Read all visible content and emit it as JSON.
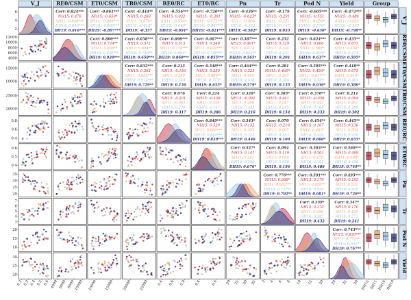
{
  "chart_data": {
    "type": "pairplot",
    "variables": [
      "VJ",
      "REo/CSM",
      "ETo/CSM",
      "TRo/CSM",
      "REo/RC",
      "ETo/RC",
      "Pn",
      "Tr",
      "Pod N",
      "Yield"
    ],
    "header_labels": [
      "V_J",
      "RE0/CSM",
      "ET0/CSM",
      "TR0/CSM",
      "RE0/RC",
      "ET0/RC",
      "Pn",
      "Tr",
      "Pod N",
      "Yield",
      "Group"
    ],
    "groups": [
      "NH15",
      "SH11",
      "HH16",
      "DH19"
    ],
    "group_colors": [
      "#c0243a",
      "#f0a060",
      "#8fc3e6",
      "#2b2b7a"
    ],
    "x_ticks": [
      [
        "0.2",
        "0.3",
        "0.4",
        "0.5",
        "0.6"
      ],
      [
        "4000",
        "6000",
        "8000",
        "10000"
      ],
      [
        "10000",
        "15000"
      ],
      [
        "20000",
        "25000"
      ],
      [
        "0.4",
        "0.6",
        "0.8"
      ],
      [
        "0.4",
        "0.6"
      ],
      [
        "20",
        "25",
        "30",
        "35"
      ],
      [
        "2",
        "4",
        "6",
        "8"
      ],
      [
        "10",
        "15",
        "20"
      ],
      [
        "20",
        "25",
        "30"
      ],
      [
        "NH15",
        "SH11",
        "HH16",
        "DH19"
      ]
    ],
    "y_ticks": [
      [
        "2",
        "4",
        "6"
      ],
      [
        "4000",
        "6000",
        "8000",
        "10000",
        "12000"
      ],
      [
        "10000",
        "15000"
      ],
      [
        "20000",
        "25000"
      ],
      [
        "0.4",
        "0.6",
        "0.8"
      ],
      [
        "0.4",
        "0.5",
        "0.6"
      ],
      [
        "20",
        "25",
        "30",
        "35"
      ],
      [
        "3",
        "4",
        "5",
        "6",
        "7"
      ],
      [
        "10",
        "15",
        "20"
      ],
      [
        "20",
        "25",
        "30"
      ]
    ],
    "correlations": [
      {
        "row": 0,
        "col": 1,
        "corr": "Corr: 0.824***",
        "g": [
          "NH15: 0.476",
          "SH11: 0.846***",
          "HH16: 0.845***",
          "DH19: 0.816***"
        ]
      },
      {
        "row": 0,
        "col": 2,
        "corr": "Corr: -0.861***",
        "g": [
          "NH15: -0.650*",
          "SH11: -0.846***",
          "HH16: -0.860***",
          "DH19: -0.897***"
        ]
      },
      {
        "row": 0,
        "col": 3,
        "corr": "Corr: -0.444**",
        "g": [
          "NH15: 0.260",
          "SH11: -0.576*",
          "HH16: -0.618*",
          "DH19: -0.357"
        ]
      },
      {
        "row": 0,
        "col": 4,
        "corr": "Corr: -0.556***",
        "g": [
          "NH15: 0.032",
          "SH11: -0.576*",
          "HH16: -0.669*",
          "DH19: -0.691*"
        ]
      },
      {
        "row": 0,
        "col": 5,
        "corr": "Corr: -0.720***",
        "g": [
          "NH15: -0.391",
          "SH11: -0.875***",
          "HH16: -0.847***",
          "DH19: -0.821***"
        ]
      },
      {
        "row": 0,
        "col": 6,
        "corr": "Corr: -0.436**",
        "g": [
          "NH15: -0.623*",
          "SH11: -0.608",
          "HH16: -0.523",
          "DH19: -0.582*"
        ]
      },
      {
        "row": 0,
        "col": 7,
        "corr": "Corr: -0.179",
        "g": [
          "NH15: -0.291",
          "SH11: -0.321",
          "HH16: -0.147",
          "DH19: 0.033"
        ]
      },
      {
        "row": 0,
        "col": 8,
        "corr": "Corr: -0.605***",
        "g": [
          "NH15: -0.551",
          "SH11: -0.650*",
          "HH16: -0.579*",
          "DH19: -0.630*"
        ]
      },
      {
        "row": 0,
        "col": 9,
        "corr": "Corr: -0.472***",
        "g": [
          "NH15: -0.484",
          "SH11: -0.459",
          "HH16: -0.535",
          "DH19: -0.798**"
        ]
      },
      {
        "row": 1,
        "col": 2,
        "corr": "Corr: 0.800***",
        "g": [
          "NH15: 0.724**",
          "SH11: 0.666**",
          "HH16: 0.836***",
          "DH19: 0.920***"
        ]
      },
      {
        "row": 1,
        "col": 3,
        "corr": "Corr: 0.658***",
        "g": [
          "NH15: 0.572",
          "SH11: 0.694**",
          "HH16: 0.740**",
          "DH19: 0.658***"
        ]
      },
      {
        "row": 1,
        "col": 4,
        "corr": "Corr: 0.698***",
        "g": [
          "NH15: 0.515",
          "SH11: 0.734***",
          "HH16: 0.661*",
          "DH19: 0.860***"
        ]
      },
      {
        "row": 1,
        "col": 5,
        "corr": "Corr: 0.667***",
        "g": [
          "NH15: 0.348",
          "SH11: 0.824***",
          "HH16: 0.700***",
          "DH19: 0.855***"
        ]
      },
      {
        "row": 1,
        "col": 6,
        "corr": "Corr: 0.587***",
        "g": [
          "NH15: 0.401*",
          "SH11: 0.674",
          "HH16: 0.602**",
          "DH19: 0.565*"
        ]
      },
      {
        "row": 1,
        "col": 7,
        "corr": "Corr: 0.252",
        "g": [
          "NH15: 0.329",
          "SH11: 0.234",
          "HH16: 0.221",
          "DH19: 0.201"
        ]
      },
      {
        "row": 1,
        "col": 8,
        "corr": "Corr: 0.624***",
        "g": [
          "NH15: 0.066",
          "SH11: 0.598*",
          "HH16: 0.603*",
          "DH19: 0.637*"
        ]
      },
      {
        "row": 1,
        "col": 9,
        "corr": "Corr: 0.435**",
        "g": [
          "NH15: 0.075",
          "SH11: 0.654*",
          "HH16: 0.474",
          "DH19: 0.595*"
        ]
      },
      {
        "row": 2,
        "col": 3,
        "corr": "Corr: 0.832***",
        "g": [
          "NH15: 0.562",
          "SH11: 0.852***",
          "HH16: 0.912***",
          "DH19: 0.729**"
        ]
      },
      {
        "row": 2,
        "col": 4,
        "corr": "Corr: 0.215",
        "g": [
          "NH15: -0.156",
          "SH11: 0.280",
          "HH16: 0.344",
          "DH19: 0.156"
        ]
      },
      {
        "row": 2,
        "col": 5,
        "corr": "Corr: 0.548***",
        "g": [
          "NH15: 0.250",
          "SH11: 0.806**",
          "HH16: 0.573*",
          "DH19: 0.655*"
        ]
      },
      {
        "row": 2,
        "col": 6,
        "corr": "Corr: 0.464***",
        "g": [
          "NH15: 0.525",
          "SH11: 0.409",
          "HH16: 0.438",
          "DH19: 0.579*"
        ]
      },
      {
        "row": 2,
        "col": 7,
        "corr": "Corr: 0.281",
        "g": [
          "NH15: 0.465*",
          "SH11: 0.207",
          "HH16: 0.204",
          "DH19: 0.135"
        ]
      },
      {
        "row": 2,
        "col": 8,
        "corr": "Corr: 0.595***",
        "g": [
          "NH15: 0.456*",
          "SH11: 0.677**",
          "HH16: 0.549",
          "DH19: 0.636*"
        ]
      },
      {
        "row": 2,
        "col": 9,
        "corr": "Corr: 0.418**",
        "g": [
          "NH15: 0.075",
          "SH11: 0.614*",
          "HH16: 0.401",
          "DH19: 0.586*"
        ]
      },
      {
        "row": 3,
        "col": 4,
        "corr": "Corr: 0.076",
        "g": [
          "NH15: -0.201",
          "SH11: -0.001",
          "HH16: 0.230",
          "DH19: 0.317"
        ]
      },
      {
        "row": 3,
        "col": 5,
        "corr": "Corr: 0.224",
        "g": [
          "NH15: -0.108",
          "SH11: 0.358",
          "HH16: 0.147",
          "DH19: 0.286"
        ]
      },
      {
        "row": 3,
        "col": 6,
        "corr": "Corr: 0.326*",
        "g": [
          "NH15: -0.002",
          "SH11: 0.208",
          "HH16: 0.345",
          "DH19: 0.216"
        ]
      },
      {
        "row": 3,
        "col": 7,
        "corr": "Corr: 0.303*",
        "g": [
          "NH15: 0.441",
          "SH11: 0.247",
          "HH16: 0.265",
          "DH19: 0.154"
        ]
      },
      {
        "row": 3,
        "col": 8,
        "corr": "Corr: 0.370**",
        "g": [
          "NH15: -0.056",
          "SH11: 0.445",
          "HH16: 0.366",
          "DH19: 0.333"
        ]
      },
      {
        "row": 3,
        "col": 9,
        "corr": "Corr: 0.211",
        "g": [
          "NH15: 0.004",
          "SH11: 0.361",
          "HH16: 0.209",
          "DH19: 0.302"
        ]
      },
      {
        "row": 4,
        "col": 5,
        "corr": "Corr: 0.849***",
        "g": [
          "NH15: 0.529",
          "SH11: 0.860***",
          "HH16: 0.864***",
          "DH19: 0.839***"
        ]
      },
      {
        "row": 4,
        "col": 6,
        "corr": "Corr: 0.343*",
        "g": [
          "NH15: 0.132",
          "SH11: 0.385",
          "HH16: 0.322",
          "DH19: 0.446"
        ]
      },
      {
        "row": 4,
        "col": 7,
        "corr": "Corr: 0.070",
        "g": [
          "NH15: -0.210",
          "SH11: 0.067",
          "HH16: 0.183",
          "DH19: 0.109"
        ]
      },
      {
        "row": 4,
        "col": 8,
        "corr": "Corr: 0.454**",
        "g": [
          "NH15: 0.107",
          "SH11: 0.463*",
          "HH16: 0.426",
          "DH19: 0.600*"
        ]
      },
      {
        "row": 4,
        "col": 9,
        "corr": "Corr: 0.445**",
        "g": [
          "NH15: 0.130",
          "SH11: 0.504",
          "HH16: 0.436",
          "DH19: 0.655*"
        ]
      },
      {
        "row": 5,
        "col": 6,
        "corr": "Corr: 0.337*",
        "g": [
          "NH15: 0.141",
          "SH11: 0.291",
          "HH16: 0.290",
          "DH19: 0.676*"
        ]
      },
      {
        "row": 5,
        "col": 7,
        "corr": "Corr: 0.094",
        "g": [
          "NH15: 0.119",
          "SH11: 0.054",
          "HH16: 0.088",
          "DH19: 0.196"
        ]
      },
      {
        "row": 5,
        "col": 8,
        "corr": "Corr: 0.503***",
        "g": [
          "NH15: 0.563",
          "SH11: 0.470",
          "HH16: 0.358",
          "DH19: 0.486"
        ]
      },
      {
        "row": 5,
        "col": 9,
        "corr": "Corr: 0.560***",
        "g": [
          "NH15: 0.469",
          "SH11: 0.608*",
          "HH16: 0.456",
          "DH19: 0.749**"
        ]
      },
      {
        "row": 6,
        "col": 7,
        "corr": "Corr: 0.776***",
        "g": [
          "NH15: 0.668*",
          "SH11: 0.882***",
          "HH16: 0.737**",
          "DH19: 0.702**"
        ]
      },
      {
        "row": 6,
        "col": 8,
        "corr": "Corr: 0.591***",
        "g": [
          "NH15: 0.179",
          "SH11: 0.650**",
          "HH16: 0.556",
          "DH19: 0.681*"
        ]
      },
      {
        "row": 6,
        "col": 9,
        "corr": "Corr: 0.495***",
        "g": [
          "NH15: 0.195",
          "SH11: 0.531",
          "HH16: 0.439",
          "DH19: 0.720**"
        ]
      },
      {
        "row": 7,
        "col": 8,
        "corr": "Corr: 0.359*",
        "g": [
          "NH15: 0.170",
          "SH11: 0.456",
          "HH16: 0.285",
          "DH19: 0.432"
        ]
      },
      {
        "row": 7,
        "col": 9,
        "corr": "Corr: 0.347*",
        "g": [
          "NH15: 0.170",
          "SH11: 0.420",
          "HH16: 0.272",
          "DH19: 0.241"
        ]
      },
      {
        "row": 8,
        "col": 9,
        "corr": "Corr: 0.743***",
        "g": [
          "NH15: 0.830***",
          "SH11: 0.772**",
          "HH16: 0.632*",
          "DH19: 0.767**"
        ]
      }
    ]
  }
}
